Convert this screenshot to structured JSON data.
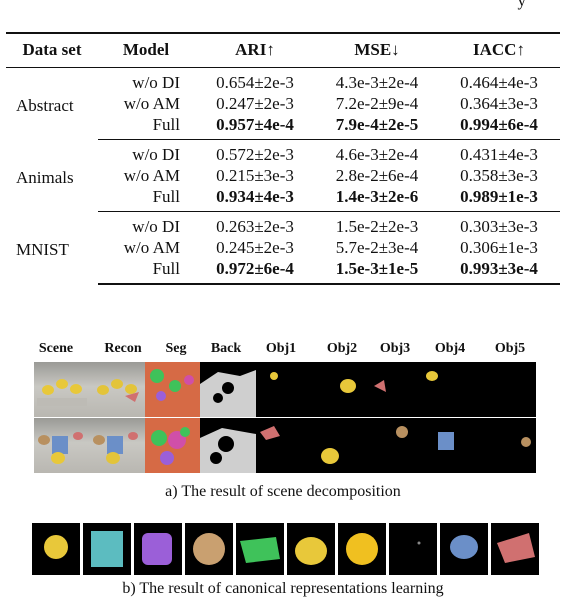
{
  "top_caption": "y",
  "table": {
    "headers": [
      "Data set",
      "Model",
      "ARI↑",
      "MSE↓",
      "IACC↑"
    ],
    "groups": [
      {
        "dataset": "Abstract",
        "rows": [
          {
            "model": "w/o DI",
            "ari": "0.654±2e-3",
            "mse": "4.3e-3±2e-4",
            "iacc": "0.464±4e-3"
          },
          {
            "model": "w/o AM",
            "ari": "0.247±2e-3",
            "mse": "7.2e-2±9e-4",
            "iacc": "0.364±3e-3"
          },
          {
            "model": "Full",
            "ari": "0.957±4e-4",
            "mse": "7.9e-4±2e-5",
            "iacc": "0.994±6e-4"
          }
        ]
      },
      {
        "dataset": "Animals",
        "rows": [
          {
            "model": "w/o DI",
            "ari": "0.572±2e-3",
            "mse": "4.6e-3±2e-4",
            "iacc": "0.431±4e-3"
          },
          {
            "model": "w/o AM",
            "ari": "0.215±3e-3",
            "mse": "2.8e-2±6e-4",
            "iacc": "0.358±3e-3"
          },
          {
            "model": "Full",
            "ari": "0.934±4e-3",
            "mse": "1.4e-3±2e-6",
            "iacc": "0.989±1e-3"
          }
        ]
      },
      {
        "dataset": "MNIST",
        "rows": [
          {
            "model": "w/o DI",
            "ari": "0.263±2e-3",
            "mse": "1.5e-2±2e-3",
            "iacc": "0.303±3e-3"
          },
          {
            "model": "w/o AM",
            "ari": "0.245±2e-3",
            "mse": "5.7e-2±3e-4",
            "iacc": "0.306±1e-3"
          },
          {
            "model": "Full",
            "ari": "0.972±6e-4",
            "mse": "1.5e-3±1e-5",
            "iacc": "0.993±3e-4"
          }
        ]
      }
    ]
  },
  "figure_a": {
    "columns": [
      "Scene",
      "Recon",
      "Seg",
      "Back",
      "Obj1",
      "Obj2",
      "Obj3",
      "Obj4",
      "Obj5"
    ],
    "caption": "a) The result of scene decomposition"
  },
  "figure_b": {
    "caption": "b) The result of canonical representations learning"
  },
  "colors": {
    "seg_background": "#d66a45",
    "duck_yellow": "#e8c83a",
    "seg_pink": "#d04fa8",
    "seg_green": "#3fc25a",
    "seg_purple": "#9b5fd8"
  }
}
